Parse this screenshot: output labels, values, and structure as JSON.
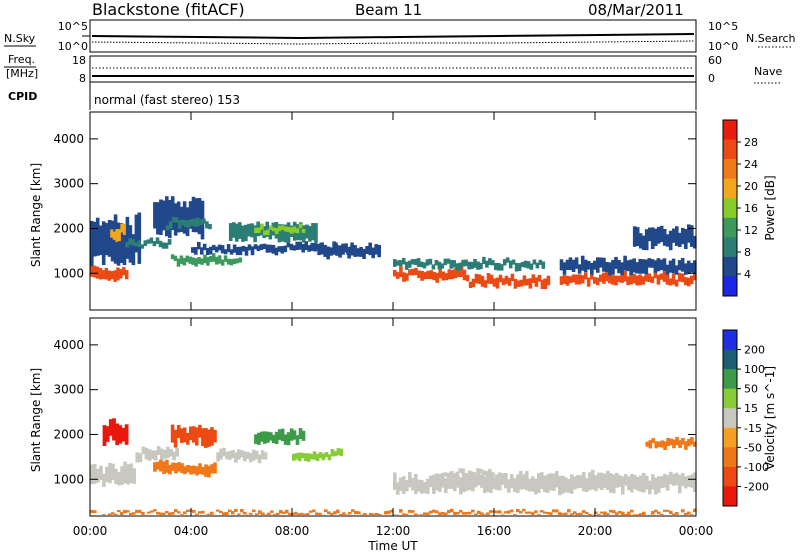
{
  "header": {
    "station": "Blackstone (fitACF)",
    "beam": "Beam 11",
    "date": "08/Mar/2011"
  },
  "left_labels": {
    "nsky": "N.Sky",
    "freq_line1": "Freq.",
    "freq_line2": "[MHz]",
    "cpid": "CPID"
  },
  "right_labels": {
    "nsearch": "N.Search",
    "nave": "Nave"
  },
  "noise_panel": {
    "left_ticks": [
      "10^5",
      "10^0"
    ],
    "right_ticks": [
      "10^5",
      "10^0"
    ]
  },
  "freq_panel": {
    "left_ticks": [
      "18",
      "8"
    ],
    "right_ticks": [
      "60",
      "0"
    ]
  },
  "cpid_text": "normal (fast stereo) 153",
  "xaxis": {
    "label": "Time UT",
    "ticks": [
      "00:00",
      "04:00",
      "08:00",
      "12:00",
      "16:00",
      "20:00",
      "00:00"
    ],
    "tick_hours": [
      0,
      4,
      8,
      12,
      16,
      20,
      24
    ],
    "range_hours": [
      0,
      24
    ]
  },
  "colors": {
    "power": [
      "#1b26e6",
      "#20488a",
      "#2c7d76",
      "#3c9a5c",
      "#88cc2a",
      "#f2a61c",
      "#f07a16",
      "#ec4a14",
      "#e81e0c"
    ],
    "velocity": [
      "#1e2ee2",
      "#1c5e74",
      "#3c9a48",
      "#88cc38",
      "#c8c8c0",
      "#f4a020",
      "#f07818",
      "#ec4a12",
      "#e8190c"
    ]
  },
  "chart_data": [
    {
      "type": "heatmap",
      "name": "power",
      "ylabel": "Slant Range [km]",
      "yticks": [
        "1000",
        "2000",
        "3000",
        "4000"
      ],
      "ytick_values": [
        1000,
        2000,
        3000,
        4000
      ],
      "ylim": [
        180,
        4600
      ],
      "xlim": [
        0,
        24
      ],
      "colorbar": {
        "label": "Power [dB]",
        "ticks": [
          "4",
          "8",
          "12",
          "16",
          "20",
          "24",
          "28"
        ],
        "tick_values": [
          4,
          8,
          12,
          16,
          20,
          24,
          28
        ],
        "range": [
          0,
          32
        ]
      },
      "bands": [
        {
          "t0": 0.0,
          "t1": 1.5,
          "r0": 850,
          "r1": 1150,
          "value": 26
        },
        {
          "t0": 0.0,
          "t1": 2.0,
          "r0": 1150,
          "r1": 2300,
          "value": 6
        },
        {
          "t0": 0.8,
          "t1": 1.4,
          "r0": 1750,
          "r1": 2050,
          "value": 18
        },
        {
          "t0": 1.4,
          "t1": 3.2,
          "r0": 1600,
          "r1": 1750,
          "value": 10
        },
        {
          "t0": 2.5,
          "t1": 4.5,
          "r0": 1800,
          "r1": 2700,
          "value": 5
        },
        {
          "t0": 3.0,
          "t1": 4.8,
          "r0": 2000,
          "r1": 2200,
          "value": 8
        },
        {
          "t0": 3.2,
          "t1": 6.0,
          "r0": 1200,
          "r1": 1400,
          "value": 12
        },
        {
          "t0": 4.0,
          "t1": 10.5,
          "r0": 1450,
          "r1": 1650,
          "value": 6
        },
        {
          "t0": 5.5,
          "t1": 9.0,
          "r0": 1700,
          "r1": 2150,
          "value": 8
        },
        {
          "t0": 6.5,
          "t1": 8.5,
          "r0": 1900,
          "r1": 2050,
          "value": 16
        },
        {
          "t0": 9.0,
          "t1": 11.5,
          "r0": 1350,
          "r1": 1650,
          "value": 4
        },
        {
          "t0": 12.0,
          "t1": 15.0,
          "r0": 850,
          "r1": 1100,
          "value": 26
        },
        {
          "t0": 12.0,
          "t1": 18.0,
          "r0": 1100,
          "r1": 1300,
          "value": 8
        },
        {
          "t0": 15.0,
          "t1": 18.2,
          "r0": 700,
          "r1": 950,
          "value": 28
        },
        {
          "t0": 18.6,
          "t1": 24.0,
          "r0": 750,
          "r1": 1000,
          "value": 26
        },
        {
          "t0": 18.6,
          "t1": 24.0,
          "r0": 1000,
          "r1": 1350,
          "value": 6
        },
        {
          "t0": 21.5,
          "t1": 24.0,
          "r0": 1550,
          "r1": 2050,
          "value": 5
        }
      ]
    },
    {
      "type": "heatmap",
      "name": "velocity",
      "ylabel": "Slant Range [km]",
      "yticks": [
        "1000",
        "2000",
        "3000",
        "4000"
      ],
      "ytick_values": [
        1000,
        2000,
        3000,
        4000
      ],
      "ylim": [
        180,
        4600
      ],
      "xlim": [
        0,
        24
      ],
      "colorbar": {
        "label": "Velocity [m s^-1]",
        "ticks": [
          "200",
          "100",
          "50",
          "15",
          "-15",
          "-50",
          "-100",
          "-200"
        ]
      },
      "bands": [
        {
          "t0": 0.0,
          "t1": 1.8,
          "r0": 850,
          "r1": 1350,
          "value": 0
        },
        {
          "t0": 0.5,
          "t1": 1.5,
          "r0": 1800,
          "r1": 2300,
          "value": -160
        },
        {
          "t0": 1.8,
          "t1": 3.5,
          "r0": 1400,
          "r1": 1700,
          "value": 0
        },
        {
          "t0": 3.2,
          "t1": 5.0,
          "r0": 1750,
          "r1": 2200,
          "value": -140
        },
        {
          "t0": 2.5,
          "t1": 5.0,
          "r0": 1100,
          "r1": 1400,
          "value": -70
        },
        {
          "t0": 5.0,
          "t1": 7.0,
          "r0": 1400,
          "r1": 1650,
          "value": 0
        },
        {
          "t0": 6.5,
          "t1": 8.5,
          "r0": 1800,
          "r1": 2100,
          "value": 40
        },
        {
          "t0": 8.0,
          "t1": 10.0,
          "r0": 1450,
          "r1": 1650,
          "value": 30
        },
        {
          "t0": 12.0,
          "t1": 24.0,
          "r0": 700,
          "r1": 1150,
          "value": 0
        },
        {
          "t0": 14.0,
          "t1": 16.0,
          "r0": 1050,
          "r1": 1200,
          "value": 0
        },
        {
          "t0": 22.0,
          "t1": 24.0,
          "r0": 1700,
          "r1": 1900,
          "value": -60
        },
        {
          "t0": 0.0,
          "t1": 24.0,
          "r0": 200,
          "r1": 280,
          "value": -60
        }
      ]
    }
  ]
}
